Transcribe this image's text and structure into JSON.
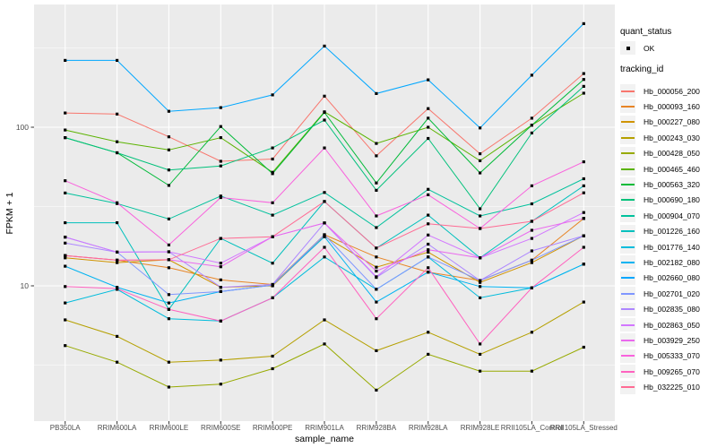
{
  "figure": {
    "background": "#FFFFFF",
    "panel_background": "#EBEBEB",
    "grid_color": "#FFFFFF",
    "tick_color": "#333333",
    "tick_text_color": "#4D4D4D"
  },
  "axes": {
    "x": {
      "title": "sample_name"
    },
    "y": {
      "title": "FPKM + 1",
      "scale": "log10",
      "tick_labels": [
        "100",
        "10"
      ],
      "tick_values": [
        100,
        10
      ],
      "minor_break_values": [
        316.23,
        31.62,
        3.162
      ]
    }
  },
  "legend": {
    "quant_status": {
      "title": "quant_status",
      "items": [
        {
          "label": "OK",
          "marker": "black-point"
        }
      ]
    },
    "tracking_id": {
      "title": "tracking_id",
      "key_fill": "#F2F2F2"
    }
  },
  "chart_data": {
    "type": "line",
    "title": "",
    "xlabel": "sample_name",
    "ylabel": "FPKM + 1",
    "yscale": "log10",
    "ylim": [
      1.4,
      594
    ],
    "y_major_ticks": [
      10,
      100
    ],
    "legend_position": "right",
    "grid": true,
    "marker": "filled-square",
    "marker_color": "#000000",
    "x_categories": [
      "PB350LA",
      "RRIM600LA",
      "RRIM600LE",
      "RRIM600SE",
      "RRIM600PE",
      "RRIM901LA",
      "RRIM928BA",
      "RRIM928LA",
      "RRIM928LE",
      "RRII105LA_Control",
      "RRII105LA_Stressed"
    ],
    "series": [
      {
        "name": "Hb_000056_200",
        "color": "#F8766D",
        "values": [
          123,
          121,
          87,
          61,
          63,
          157,
          66,
          131,
          68,
          114,
          218
        ]
      },
      {
        "name": "Hb_000093_160",
        "color": "#E78425",
        "values": [
          15.5,
          14.5,
          13,
          10.9,
          10.2,
          21,
          15.2,
          12.2,
          10.8,
          14.5,
          26.6
        ]
      },
      {
        "name": "Hb_000227_080",
        "color": "#D09400",
        "values": [
          15,
          14,
          14.6,
          9.8,
          10,
          20.5,
          13.1,
          16.3,
          10.5,
          14,
          20.7
        ]
      },
      {
        "name": "Hb_000243_030",
        "color": "#B5A000",
        "values": [
          6.1,
          4.8,
          3.3,
          3.4,
          3.6,
          6.1,
          3.9,
          5.1,
          3.7,
          5.1,
          7.9
        ]
      },
      {
        "name": "Hb_000428_050",
        "color": "#97AA00",
        "values": [
          4.2,
          3.3,
          2.3,
          2.4,
          3,
          4.3,
          2.2,
          3.7,
          2.9,
          2.9,
          4.1
        ]
      },
      {
        "name": "Hb_000465_460",
        "color": "#5BB300",
        "values": [
          96,
          81,
          72,
          86,
          52,
          125,
          79,
          100,
          61.5,
          103,
          164
        ]
      },
      {
        "name": "Hb_000563_320",
        "color": "#00BA38",
        "values": [
          86,
          69,
          43,
          101,
          51,
          124,
          44.5,
          114,
          51.5,
          103,
          200
        ]
      },
      {
        "name": "Hb_000690_180",
        "color": "#00C17A",
        "values": [
          86,
          69,
          53.8,
          57,
          74,
          111,
          40,
          85,
          30.6,
          92,
          181
        ]
      },
      {
        "name": "Hb_000904_070",
        "color": "#00C19C",
        "values": [
          38.5,
          33,
          26.4,
          36.8,
          27.9,
          38.8,
          23.3,
          40.6,
          27.6,
          32.9,
          47.3
        ]
      },
      {
        "name": "Hb_001226_160",
        "color": "#00C0BD",
        "values": [
          25,
          25,
          7.1,
          19.9,
          13.9,
          34,
          17.3,
          27.9,
          15,
          25.5,
          42.7
        ]
      },
      {
        "name": "Hb_001776_140",
        "color": "#00BCDC",
        "values": [
          7.8,
          9.5,
          6.2,
          6,
          8.4,
          15.2,
          9.5,
          15.2,
          8.4,
          9.7,
          13.7
        ]
      },
      {
        "name": "Hb_002182_080",
        "color": "#00B3F1",
        "values": [
          13.3,
          9.8,
          7.8,
          9.2,
          10.1,
          20.4,
          7.9,
          12.2,
          9.9,
          9.7,
          13.7
        ]
      },
      {
        "name": "Hb_002660_080",
        "color": "#00A7FF",
        "values": [
          264,
          264,
          126,
          133,
          160,
          325,
          163,
          199,
          99,
          213,
          450
        ]
      },
      {
        "name": "Hb_002701_020",
        "color": "#7F96FF",
        "values": [
          20.3,
          16.3,
          8.8,
          9.2,
          10.1,
          21,
          9.5,
          15.2,
          10.8,
          14.5,
          20.7
        ]
      },
      {
        "name": "Hb_002835_080",
        "color": "#AE87FF",
        "values": [
          18.6,
          16.3,
          16.4,
          9.8,
          10.2,
          24.9,
          11.3,
          18.3,
          10.8,
          16.6,
          20.7
        ]
      },
      {
        "name": "Hb_002863_050",
        "color": "#D277FF",
        "values": [
          20.3,
          16.3,
          16.4,
          13.9,
          20.4,
          24.9,
          11.4,
          20.9,
          15,
          19.9,
          29
        ]
      },
      {
        "name": "Hb_003929_250",
        "color": "#EA69EE",
        "values": [
          15.5,
          14.5,
          14.6,
          13.2,
          20.4,
          24.9,
          12.4,
          16.9,
          15,
          22.4,
          26.6
        ]
      },
      {
        "name": "Hb_005333_070",
        "color": "#F962DD",
        "values": [
          46,
          33.4,
          18.1,
          36,
          33.4,
          74,
          27.6,
          37.5,
          23,
          42.7,
          60.5
        ]
      },
      {
        "name": "Hb_009265_070",
        "color": "#FF62BF",
        "values": [
          9.9,
          9.6,
          7.1,
          6,
          8.4,
          17.5,
          6.2,
          13,
          4.3,
          9.7,
          17.5
        ]
      },
      {
        "name": "Hb_032225_010",
        "color": "#FF6B94",
        "values": [
          15.5,
          14.5,
          14.6,
          19.9,
          20.4,
          34,
          17.3,
          24.6,
          23,
          25.5,
          38.6
        ]
      }
    ]
  }
}
